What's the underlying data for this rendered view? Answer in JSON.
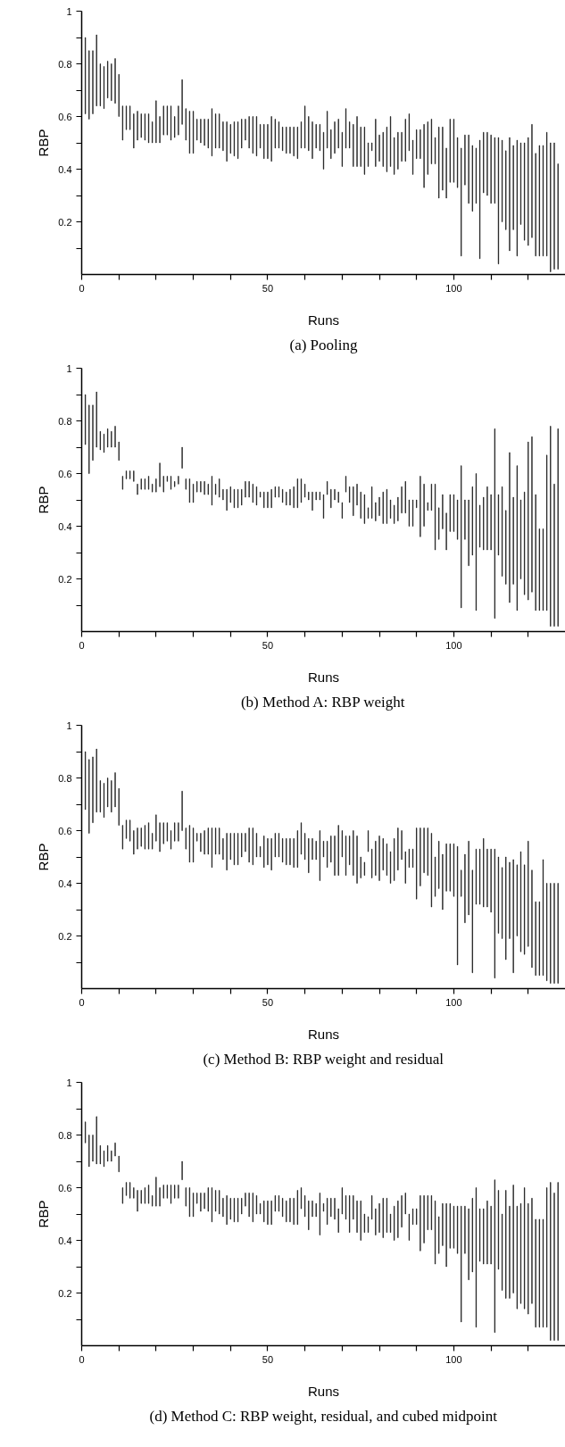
{
  "chart_data": [
    {
      "type": "bar",
      "title": "(a) Pooling",
      "xlabel": "Runs",
      "ylabel": "RBP",
      "color": "#000000",
      "xlim": [
        0,
        130
      ],
      "ylim": [
        0,
        1.0
      ],
      "xticks": [
        0,
        {
          "value": 10,
          "label": null
        },
        {
          "value": 20,
          "label": null
        },
        {
          "value": 30,
          "label": null
        },
        {
          "value": 40,
          "label": null
        },
        50,
        {
          "value": 60,
          "label": null
        },
        {
          "value": 70,
          "label": null
        },
        {
          "value": 80,
          "label": null
        },
        {
          "value": 90,
          "label": null
        },
        100,
        {
          "value": 110,
          "label": null
        },
        {
          "value": 120,
          "label": null
        }
      ],
      "yticks": [
        {
          "value": 0.1,
          "label": null
        },
        0.2,
        {
          "value": 0.3,
          "label": null
        },
        0.4,
        {
          "value": 0.5,
          "label": null
        },
        0.6,
        {
          "value": 0.7,
          "label": null
        },
        0.8,
        {
          "value": 0.9,
          "label": null
        },
        1.0
      ],
      "x": [
        1,
        2,
        3,
        4,
        5,
        6,
        7,
        8,
        9,
        10,
        11,
        12,
        13,
        14,
        15,
        16,
        17,
        18,
        19,
        20,
        21,
        22,
        23,
        24,
        25,
        26,
        27,
        28,
        29,
        30,
        31,
        32,
        33,
        34,
        35,
        36,
        37,
        38,
        39,
        40,
        41,
        42,
        43,
        44,
        45,
        46,
        47,
        48,
        49,
        50,
        51,
        52,
        53,
        54,
        55,
        56,
        57,
        58,
        59,
        60,
        61,
        62,
        63,
        64,
        65,
        66,
        67,
        68,
        69,
        70,
        71,
        72,
        73,
        74,
        75,
        76,
        77,
        78,
        79,
        80,
        81,
        82,
        83,
        84,
        85,
        86,
        87,
        88,
        89,
        90,
        91,
        92,
        93,
        94,
        95,
        96,
        97,
        98,
        99,
        100,
        101,
        102,
        103,
        104,
        105,
        106,
        107,
        108,
        109,
        110,
        111,
        112,
        113,
        114,
        115,
        116,
        117,
        118,
        119,
        120,
        121,
        122,
        123,
        124,
        125,
        126,
        127,
        128
      ],
      "base": [
        0.61,
        0.59,
        0.61,
        0.64,
        0.64,
        0.63,
        0.67,
        0.66,
        0.65,
        0.6,
        0.51,
        0.55,
        0.55,
        0.48,
        0.51,
        0.52,
        0.51,
        0.5,
        0.5,
        0.5,
        0.5,
        0.53,
        0.53,
        0.51,
        0.52,
        0.53,
        0.57,
        0.51,
        0.46,
        0.46,
        0.51,
        0.5,
        0.49,
        0.48,
        0.45,
        0.48,
        0.48,
        0.47,
        0.43,
        0.46,
        0.45,
        0.44,
        0.48,
        0.51,
        0.48,
        0.46,
        0.45,
        0.48,
        0.44,
        0.44,
        0.43,
        0.48,
        0.48,
        0.47,
        0.46,
        0.46,
        0.45,
        0.44,
        0.48,
        0.48,
        0.47,
        0.44,
        0.48,
        0.47,
        0.4,
        0.48,
        0.44,
        0.46,
        0.48,
        0.41,
        0.48,
        0.48,
        0.41,
        0.41,
        0.41,
        0.38,
        0.41,
        0.47,
        0.41,
        0.43,
        0.41,
        0.39,
        0.41,
        0.38,
        0.4,
        0.43,
        0.43,
        0.47,
        0.38,
        0.44,
        0.44,
        0.33,
        0.38,
        0.42,
        0.42,
        0.29,
        0.32,
        0.29,
        0.35,
        0.35,
        0.33,
        0.07,
        0.34,
        0.27,
        0.24,
        0.27,
        0.06,
        0.31,
        0.3,
        0.27,
        0.27,
        0.04,
        0.2,
        0.17,
        0.09,
        0.17,
        0.07,
        0.19,
        0.13,
        0.11,
        0.14,
        0.07,
        0.07,
        0.07,
        0.07,
        0.01,
        0.02,
        0.02
      ],
      "values": [
        0.29,
        0.26,
        0.24,
        0.27,
        0.16,
        0.16,
        0.14,
        0.14,
        0.17,
        0.16,
        0.13,
        0.09,
        0.09,
        0.13,
        0.11,
        0.09,
        0.1,
        0.11,
        0.08,
        0.16,
        0.1,
        0.11,
        0.11,
        0.13,
        0.08,
        0.11,
        0.17,
        0.12,
        0.16,
        0.16,
        0.08,
        0.09,
        0.1,
        0.11,
        0.18,
        0.13,
        0.13,
        0.11,
        0.15,
        0.11,
        0.13,
        0.14,
        0.11,
        0.08,
        0.12,
        0.14,
        0.15,
        0.09,
        0.13,
        0.13,
        0.17,
        0.11,
        0.1,
        0.09,
        0.1,
        0.1,
        0.11,
        0.12,
        0.1,
        0.16,
        0.13,
        0.14,
        0.09,
        0.1,
        0.14,
        0.14,
        0.11,
        0.12,
        0.11,
        0.13,
        0.15,
        0.1,
        0.16,
        0.19,
        0.15,
        0.18,
        0.09,
        0.03,
        0.18,
        0.1,
        0.13,
        0.17,
        0.19,
        0.14,
        0.14,
        0.11,
        0.16,
        0.14,
        0.13,
        0.11,
        0.11,
        0.24,
        0.2,
        0.17,
        0.1,
        0.27,
        0.24,
        0.19,
        0.24,
        0.24,
        0.19,
        0.41,
        0.19,
        0.26,
        0.25,
        0.21,
        0.45,
        0.23,
        0.24,
        0.26,
        0.25,
        0.48,
        0.31,
        0.3,
        0.43,
        0.32,
        0.44,
        0.31,
        0.37,
        0.41,
        0.43,
        0.39,
        0.42,
        0.42,
        0.47,
        0.49,
        0.48,
        0.4
      ]
    },
    {
      "type": "bar",
      "title": "(b) Method A: RBP weight",
      "xlabel": "Runs",
      "ylabel": "RBP",
      "color": "#000000",
      "xlim": [
        0,
        130
      ],
      "ylim": [
        0,
        1.0
      ],
      "xticks": [
        0,
        {
          "value": 10,
          "label": null
        },
        {
          "value": 20,
          "label": null
        },
        {
          "value": 30,
          "label": null
        },
        {
          "value": 40,
          "label": null
        },
        50,
        {
          "value": 60,
          "label": null
        },
        {
          "value": 70,
          "label": null
        },
        {
          "value": 80,
          "label": null
        },
        {
          "value": 90,
          "label": null
        },
        100,
        {
          "value": 110,
          "label": null
        },
        {
          "value": 120,
          "label": null
        }
      ],
      "yticks": [
        {
          "value": 0.1,
          "label": null
        },
        0.2,
        {
          "value": 0.3,
          "label": null
        },
        0.4,
        {
          "value": 0.5,
          "label": null
        },
        0.6,
        {
          "value": 0.7,
          "label": null
        },
        0.8,
        {
          "value": 0.9,
          "label": null
        },
        1.0
      ],
      "x": [
        1,
        2,
        3,
        4,
        5,
        6,
        7,
        8,
        9,
        10,
        11,
        12,
        13,
        14,
        15,
        16,
        17,
        18,
        19,
        20,
        21,
        22,
        23,
        24,
        25,
        26,
        27,
        28,
        29,
        30,
        31,
        32,
        33,
        34,
        35,
        36,
        37,
        38,
        39,
        40,
        41,
        42,
        43,
        44,
        45,
        46,
        47,
        48,
        49,
        50,
        51,
        52,
        53,
        54,
        55,
        56,
        57,
        58,
        59,
        60,
        61,
        62,
        63,
        64,
        65,
        66,
        67,
        68,
        69,
        70,
        71,
        72,
        73,
        74,
        75,
        76,
        77,
        78,
        79,
        80,
        81,
        82,
        83,
        84,
        85,
        86,
        87,
        88,
        89,
        90,
        91,
        92,
        93,
        94,
        95,
        96,
        97,
        98,
        99,
        100,
        101,
        102,
        103,
        104,
        105,
        106,
        107,
        108,
        109,
        110,
        111,
        112,
        113,
        114,
        115,
        116,
        117,
        118,
        119,
        120,
        121,
        122,
        123,
        124,
        125,
        126,
        127,
        128
      ],
      "base": [
        0.71,
        0.6,
        0.65,
        0.7,
        0.69,
        0.68,
        0.7,
        0.7,
        0.7,
        0.65,
        0.54,
        0.58,
        0.58,
        0.57,
        0.52,
        0.54,
        0.54,
        0.54,
        0.53,
        0.53,
        0.55,
        0.53,
        0.57,
        0.54,
        0.55,
        0.56,
        0.62,
        0.54,
        0.49,
        0.49,
        0.53,
        0.53,
        0.52,
        0.52,
        0.48,
        0.52,
        0.51,
        0.5,
        0.46,
        0.49,
        0.47,
        0.47,
        0.48,
        0.51,
        0.51,
        0.49,
        0.48,
        0.51,
        0.47,
        0.47,
        0.47,
        0.51,
        0.51,
        0.49,
        0.48,
        0.48,
        0.47,
        0.47,
        0.49,
        0.51,
        0.5,
        0.46,
        0.5,
        0.5,
        0.43,
        0.52,
        0.47,
        0.5,
        0.49,
        0.43,
        0.53,
        0.49,
        0.44,
        0.48,
        0.43,
        0.41,
        0.43,
        0.43,
        0.42,
        0.44,
        0.41,
        0.41,
        0.43,
        0.41,
        0.42,
        0.45,
        0.45,
        0.4,
        0.4,
        0.47,
        0.36,
        0.4,
        0.46,
        0.46,
        0.31,
        0.35,
        0.39,
        0.31,
        0.38,
        0.38,
        0.35,
        0.09,
        0.35,
        0.25,
        0.29,
        0.08,
        0.32,
        0.31,
        0.31,
        0.31,
        0.05,
        0.29,
        0.21,
        0.18,
        0.11,
        0.18,
        0.08,
        0.2,
        0.14,
        0.12,
        0.15,
        0.08,
        0.08,
        0.08,
        0.08,
        0.02,
        0.02,
        0.02
      ],
      "values": [
        0.19,
        0.26,
        0.21,
        0.21,
        0.07,
        0.07,
        0.07,
        0.06,
        0.08,
        0.07,
        0.05,
        0.03,
        0.03,
        0.04,
        0.04,
        0.04,
        0.04,
        0.05,
        0.03,
        0.05,
        0.09,
        0.06,
        0.02,
        0.05,
        0.02,
        0.03,
        0.08,
        0.04,
        0.09,
        0.07,
        0.04,
        0.04,
        0.05,
        0.04,
        0.11,
        0.04,
        0.07,
        0.04,
        0.08,
        0.06,
        0.07,
        0.07,
        0.06,
        0.06,
        0.06,
        0.07,
        0.07,
        0.02,
        0.06,
        0.06,
        0.07,
        0.04,
        0.04,
        0.05,
        0.05,
        0.06,
        0.08,
        0.11,
        0.09,
        0.05,
        0.03,
        0.07,
        0.03,
        0.03,
        0.09,
        0.05,
        0.07,
        0.04,
        0.04,
        0.06,
        0.06,
        0.06,
        0.11,
        0.08,
        0.1,
        0.11,
        0.04,
        0.12,
        0.07,
        0.07,
        0.12,
        0.13,
        0.07,
        0.07,
        0.09,
        0.1,
        0.12,
        0.1,
        0.1,
        0.03,
        0.23,
        0.16,
        0.03,
        0.1,
        0.25,
        0.12,
        0.13,
        0.14,
        0.14,
        0.14,
        0.15,
        0.54,
        0.15,
        0.25,
        0.26,
        0.52,
        0.16,
        0.2,
        0.24,
        0.21,
        0.72,
        0.23,
        0.34,
        0.28,
        0.57,
        0.33,
        0.55,
        0.3,
        0.39,
        0.6,
        0.59,
        0.44,
        0.31,
        0.31,
        0.59,
        0.76,
        0.54,
        0.75
      ]
    },
    {
      "type": "bar",
      "title": "(c) Method B: RBP weight and residual",
      "xlabel": "Runs",
      "ylabel": "RBP",
      "color": "#000000",
      "xlim": [
        0,
        130
      ],
      "ylim": [
        0,
        1.0
      ],
      "xticks": [
        0,
        {
          "value": 10,
          "label": null
        },
        {
          "value": 20,
          "label": null
        },
        {
          "value": 30,
          "label": null
        },
        {
          "value": 40,
          "label": null
        },
        50,
        {
          "value": 60,
          "label": null
        },
        {
          "value": 70,
          "label": null
        },
        {
          "value": 80,
          "label": null
        },
        {
          "value": 90,
          "label": null
        },
        100,
        {
          "value": 110,
          "label": null
        },
        {
          "value": 120,
          "label": null
        }
      ],
      "yticks": [
        {
          "value": 0.1,
          "label": null
        },
        0.2,
        {
          "value": 0.3,
          "label": null
        },
        0.4,
        {
          "value": 0.5,
          "label": null
        },
        0.6,
        {
          "value": 0.7,
          "label": null
        },
        0.8,
        {
          "value": 0.9,
          "label": null
        },
        1.0
      ],
      "x": [
        1,
        2,
        3,
        4,
        5,
        6,
        7,
        8,
        9,
        10,
        11,
        12,
        13,
        14,
        15,
        16,
        17,
        18,
        19,
        20,
        21,
        22,
        23,
        24,
        25,
        26,
        27,
        28,
        29,
        30,
        31,
        32,
        33,
        34,
        35,
        36,
        37,
        38,
        39,
        40,
        41,
        42,
        43,
        44,
        45,
        46,
        47,
        48,
        49,
        50,
        51,
        52,
        53,
        54,
        55,
        56,
        57,
        58,
        59,
        60,
        61,
        62,
        63,
        64,
        65,
        66,
        67,
        68,
        69,
        70,
        71,
        72,
        73,
        74,
        75,
        76,
        77,
        78,
        79,
        80,
        81,
        82,
        83,
        84,
        85,
        86,
        87,
        88,
        89,
        90,
        91,
        92,
        93,
        94,
        95,
        96,
        97,
        98,
        99,
        100,
        101,
        102,
        103,
        104,
        105,
        106,
        107,
        108,
        109,
        110,
        111,
        112,
        113,
        114,
        115,
        116,
        117,
        118,
        119,
        120,
        121,
        122,
        123,
        124,
        125,
        126,
        127,
        128
      ],
      "base": [
        0.68,
        0.59,
        0.63,
        0.67,
        0.67,
        0.65,
        0.69,
        0.67,
        0.69,
        0.62,
        0.53,
        0.57,
        0.56,
        0.51,
        0.53,
        0.54,
        0.53,
        0.53,
        0.53,
        0.56,
        0.52,
        0.55,
        0.56,
        0.53,
        0.56,
        0.56,
        0.6,
        0.53,
        0.48,
        0.48,
        0.56,
        0.52,
        0.51,
        0.51,
        0.46,
        0.51,
        0.51,
        0.49,
        0.45,
        0.49,
        0.47,
        0.47,
        0.5,
        0.52,
        0.48,
        0.47,
        0.5,
        0.5,
        0.46,
        0.47,
        0.45,
        0.5,
        0.5,
        0.48,
        0.47,
        0.47,
        0.46,
        0.46,
        0.51,
        0.49,
        0.44,
        0.49,
        0.49,
        0.41,
        0.5,
        0.46,
        0.48,
        0.43,
        0.43,
        0.5,
        0.43,
        0.47,
        0.43,
        0.4,
        0.42,
        0.43,
        0.52,
        0.42,
        0.43,
        0.41,
        0.45,
        0.43,
        0.4,
        0.41,
        0.45,
        0.49,
        0.4,
        0.46,
        0.46,
        0.34,
        0.39,
        0.44,
        0.43,
        0.31,
        0.35,
        0.38,
        0.3,
        0.37,
        0.37,
        0.35,
        0.09,
        0.35,
        0.25,
        0.28,
        0.06,
        0.32,
        0.32,
        0.31,
        0.31,
        0.29,
        0.04,
        0.21,
        0.19,
        0.11,
        0.19,
        0.06,
        0.2,
        0.14,
        0.13,
        0.16,
        0.08,
        0.05,
        0.05,
        0.05,
        0.03,
        0.02,
        0.02,
        0.02
      ],
      "values": [
        0.22,
        0.28,
        0.25,
        0.24,
        0.12,
        0.13,
        0.11,
        0.12,
        0.13,
        0.14,
        0.09,
        0.07,
        0.08,
        0.09,
        0.08,
        0.07,
        0.09,
        0.1,
        0.06,
        0.1,
        0.11,
        0.08,
        0.07,
        0.07,
        0.07,
        0.07,
        0.15,
        0.08,
        0.14,
        0.13,
        0.03,
        0.07,
        0.09,
        0.1,
        0.15,
        0.1,
        0.1,
        0.08,
        0.14,
        0.1,
        0.12,
        0.12,
        0.09,
        0.07,
        0.13,
        0.14,
        0.09,
        0.04,
        0.12,
        0.1,
        0.12,
        0.09,
        0.09,
        0.09,
        0.1,
        0.1,
        0.11,
        0.14,
        0.12,
        0.1,
        0.13,
        0.08,
        0.07,
        0.19,
        0.06,
        0.1,
        0.1,
        0.15,
        0.19,
        0.1,
        0.15,
        0.11,
        0.17,
        0.18,
        0.08,
        0.05,
        0.08,
        0.11,
        0.13,
        0.17,
        0.12,
        0.12,
        0.12,
        0.16,
        0.16,
        0.11,
        0.12,
        0.07,
        0.07,
        0.27,
        0.22,
        0.17,
        0.18,
        0.28,
        0.15,
        0.18,
        0.21,
        0.18,
        0.18,
        0.2,
        0.45,
        0.1,
        0.26,
        0.28,
        0.39,
        0.21,
        0.21,
        0.26,
        0.22,
        0.24,
        0.49,
        0.29,
        0.27,
        0.39,
        0.29,
        0.43,
        0.27,
        0.38,
        0.34,
        0.4,
        0.37,
        0.28,
        0.28,
        0.44,
        0.37,
        0.38,
        0.38,
        0.38
      ]
    },
    {
      "type": "bar",
      "title": "(d) Method C: RBP weight, residual, and cubed midpoint",
      "xlabel": "Runs",
      "ylabel": "RBP",
      "color": "#000000",
      "xlim": [
        0,
        130
      ],
      "ylim": [
        0,
        1.0
      ],
      "xticks": [
        0,
        {
          "value": 10,
          "label": null
        },
        {
          "value": 20,
          "label": null
        },
        {
          "value": 30,
          "label": null
        },
        {
          "value": 40,
          "label": null
        },
        50,
        {
          "value": 60,
          "label": null
        },
        {
          "value": 70,
          "label": null
        },
        {
          "value": 80,
          "label": null
        },
        {
          "value": 90,
          "label": null
        },
        100,
        {
          "value": 110,
          "label": null
        },
        {
          "value": 120,
          "label": null
        }
      ],
      "yticks": [
        {
          "value": 0.1,
          "label": null
        },
        0.2,
        {
          "value": 0.3,
          "label": null
        },
        0.4,
        {
          "value": 0.5,
          "label": null
        },
        0.6,
        {
          "value": 0.7,
          "label": null
        },
        0.8,
        {
          "value": 0.9,
          "label": null
        },
        1.0
      ],
      "x": [
        1,
        2,
        3,
        4,
        5,
        6,
        7,
        8,
        9,
        10,
        11,
        12,
        13,
        14,
        15,
        16,
        17,
        18,
        19,
        20,
        21,
        22,
        23,
        24,
        25,
        26,
        27,
        28,
        29,
        30,
        31,
        32,
        33,
        34,
        35,
        36,
        37,
        38,
        39,
        40,
        41,
        42,
        43,
        44,
        45,
        46,
        47,
        48,
        49,
        50,
        51,
        52,
        53,
        54,
        55,
        56,
        57,
        58,
        59,
        60,
        61,
        62,
        63,
        64,
        65,
        66,
        67,
        68,
        69,
        70,
        71,
        72,
        73,
        74,
        75,
        76,
        77,
        78,
        79,
        80,
        81,
        82,
        83,
        84,
        85,
        86,
        87,
        88,
        89,
        90,
        91,
        92,
        93,
        94,
        95,
        96,
        97,
        98,
        99,
        100,
        101,
        102,
        103,
        104,
        105,
        106,
        107,
        108,
        109,
        110,
        111,
        112,
        113,
        114,
        115,
        116,
        117,
        118,
        119,
        120,
        121,
        122,
        123,
        124,
        125,
        126,
        127,
        128
      ],
      "base": [
        0.77,
        0.68,
        0.7,
        0.69,
        0.69,
        0.68,
        0.7,
        0.7,
        0.72,
        0.66,
        0.54,
        0.57,
        0.56,
        0.56,
        0.51,
        0.54,
        0.54,
        0.54,
        0.53,
        0.53,
        0.53,
        0.56,
        0.56,
        0.54,
        0.56,
        0.56,
        0.63,
        0.53,
        0.49,
        0.49,
        0.54,
        0.51,
        0.52,
        0.51,
        0.47,
        0.51,
        0.5,
        0.49,
        0.46,
        0.48,
        0.47,
        0.47,
        0.5,
        0.53,
        0.49,
        0.47,
        0.5,
        0.5,
        0.47,
        0.46,
        0.46,
        0.51,
        0.51,
        0.49,
        0.47,
        0.47,
        0.46,
        0.46,
        0.52,
        0.49,
        0.44,
        0.49,
        0.49,
        0.42,
        0.51,
        0.46,
        0.49,
        0.48,
        0.43,
        0.5,
        0.48,
        0.43,
        0.48,
        0.43,
        0.4,
        0.43,
        0.43,
        0.48,
        0.42,
        0.43,
        0.41,
        0.43,
        0.43,
        0.4,
        0.41,
        0.45,
        0.5,
        0.4,
        0.46,
        0.46,
        0.36,
        0.39,
        0.44,
        0.44,
        0.31,
        0.35,
        0.38,
        0.3,
        0.37,
        0.37,
        0.35,
        0.09,
        0.35,
        0.25,
        0.28,
        0.07,
        0.32,
        0.31,
        0.31,
        0.31,
        0.05,
        0.29,
        0.21,
        0.18,
        0.18,
        0.2,
        0.14,
        0.16,
        0.14,
        0.12,
        0.16,
        0.07,
        0.07,
        0.07,
        0.07,
        0.02,
        0.02,
        0.02
      ],
      "values": [
        0.08,
        0.12,
        0.1,
        0.18,
        0.07,
        0.06,
        0.06,
        0.04,
        0.05,
        0.06,
        0.06,
        0.05,
        0.06,
        0.04,
        0.08,
        0.05,
        0.06,
        0.07,
        0.04,
        0.11,
        0.07,
        0.05,
        0.05,
        0.07,
        0.05,
        0.05,
        0.07,
        0.07,
        0.11,
        0.09,
        0.04,
        0.07,
        0.06,
        0.09,
        0.13,
        0.08,
        0.09,
        0.07,
        0.11,
        0.08,
        0.09,
        0.09,
        0.06,
        0.05,
        0.09,
        0.11,
        0.07,
        0.04,
        0.08,
        0.09,
        0.09,
        0.06,
        0.06,
        0.07,
        0.08,
        0.09,
        0.1,
        0.13,
        0.08,
        0.08,
        0.11,
        0.06,
        0.05,
        0.16,
        0.03,
        0.1,
        0.07,
        0.08,
        0.09,
        0.1,
        0.09,
        0.14,
        0.09,
        0.12,
        0.15,
        0.07,
        0.06,
        0.09,
        0.1,
        0.11,
        0.15,
        0.13,
        0.07,
        0.13,
        0.14,
        0.12,
        0.08,
        0.1,
        0.06,
        0.06,
        0.21,
        0.18,
        0.13,
        0.13,
        0.24,
        0.14,
        0.16,
        0.24,
        0.17,
        0.16,
        0.18,
        0.44,
        0.18,
        0.27,
        0.28,
        0.53,
        0.2,
        0.21,
        0.24,
        0.22,
        0.58,
        0.3,
        0.29,
        0.41,
        0.35,
        0.41,
        0.39,
        0.38,
        0.46,
        0.42,
        0.4,
        0.41,
        0.41,
        0.41,
        0.53,
        0.6,
        0.56,
        0.6
      ]
    }
  ]
}
